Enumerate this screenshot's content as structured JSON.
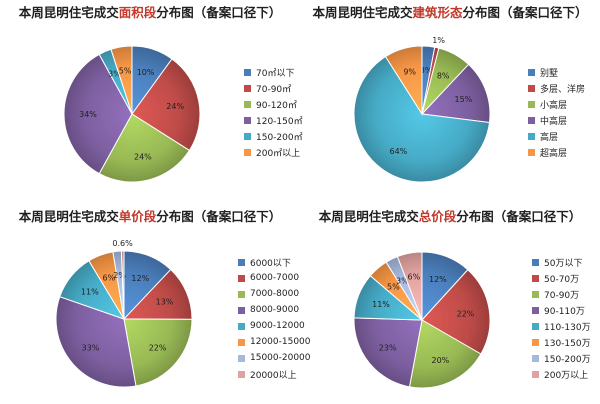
{
  "chart_data": [
    {
      "type": "pie",
      "title_pre": "本周昆明住宅成交",
      "title_hl": "面积段",
      "title_post": "分布图（备案口径下）",
      "categories": [
        "70㎡以下",
        "70-90㎡",
        "90-120㎡",
        "120-150㎡",
        "150-200㎡",
        "200㎡以上"
      ],
      "values": [
        10,
        24,
        24,
        34,
        3,
        5
      ],
      "labels": [
        "10%",
        "24%",
        "24%",
        "34%",
        "3%",
        "5%"
      ],
      "colors": [
        "#4a7ebb",
        "#be4b48",
        "#98b954",
        "#7d5fa0",
        "#46aac5",
        "#f79646"
      ]
    },
    {
      "type": "pie",
      "title_pre": "本周昆明住宅成交",
      "title_hl": "建筑形态",
      "title_post": "分布图（备案口径下）",
      "categories": [
        "别墅",
        "多层、洋房",
        "小高层",
        "中高层",
        "高层",
        "超高层"
      ],
      "values": [
        3,
        1,
        8,
        15,
        64,
        9
      ],
      "labels": [
        "3%",
        "1%",
        "8%",
        "15%",
        "64%",
        "9%"
      ],
      "colors": [
        "#4a7ebb",
        "#be4b48",
        "#98b954",
        "#7d5fa0",
        "#46aac5",
        "#f79646"
      ]
    },
    {
      "type": "pie",
      "title_pre": "本周昆明住宅成交",
      "title_hl": "单价段",
      "title_post": "分布图（备案口径下）",
      "categories": [
        "6000以下",
        "6000-7000",
        "7000-8000",
        "8000-9000",
        "9000-12000",
        "12000-15000",
        "15000-20000",
        "20000以上"
      ],
      "values": [
        12,
        13,
        22,
        33,
        11,
        6,
        2,
        0.6
      ],
      "labels": [
        "12%",
        "13%",
        "22%",
        "33%",
        "11%",
        "6%",
        "2%",
        "0.6%"
      ],
      "colors": [
        "#4a7ebb",
        "#be4b48",
        "#98b954",
        "#7d5fa0",
        "#46aac5",
        "#f79646",
        "#a5b9dd",
        "#e0a2a0"
      ]
    },
    {
      "type": "pie",
      "title_pre": "本周昆明住宅成交",
      "title_hl": "总价段",
      "title_post": "分布图（备案口径下）",
      "categories": [
        "50万以下",
        "50-70万",
        "70-90万",
        "90-110万",
        "110-130万",
        "130-150万",
        "150-200万",
        "200万以上"
      ],
      "values": [
        12,
        22,
        20,
        23,
        11,
        5,
        3,
        6
      ],
      "labels": [
        "12%",
        "22%",
        "20%",
        "23%",
        "11%",
        "5%",
        "3%",
        "6%"
      ],
      "colors": [
        "#4a7ebb",
        "#be4b48",
        "#98b954",
        "#7d5fa0",
        "#46aac5",
        "#f79646",
        "#a5b9dd",
        "#e0a2a0"
      ]
    }
  ]
}
